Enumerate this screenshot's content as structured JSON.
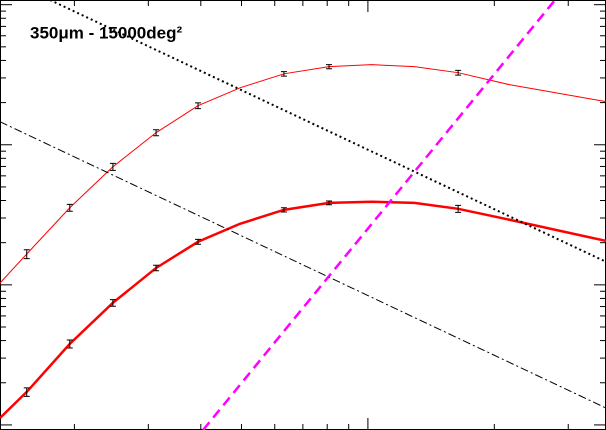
{
  "chart_data": {
    "type": "line",
    "title": "350μm - 15000deg²",
    "xscale": "log",
    "yscale": "log",
    "xlim": [
      0.133,
      3.69
    ],
    "ylim": [
      0.092,
      108
    ],
    "xticks": [
      0.2,
      0.3,
      0.4,
      0.5,
      0.6,
      0.7,
      0.8,
      0.9,
      1,
      2,
      3
    ],
    "yticks": [
      0.1,
      0.2,
      0.3,
      0.4,
      0.5,
      0.6,
      0.7,
      0.8,
      0.9,
      1,
      2,
      3,
      4,
      5,
      6,
      7,
      8,
      9,
      10,
      20,
      30,
      40,
      50,
      60,
      70,
      80,
      90,
      100
    ],
    "series": [
      {
        "color": "#ff0000",
        "style": "solid",
        "width": 1,
        "x": [
          0.133,
          0.154,
          0.195,
          0.247,
          0.313,
          0.394,
          0.496,
          0.631,
          0.808,
          1.02,
          1.29,
          1.64,
          2.18,
          3.69
        ],
        "values": [
          1.03,
          1.66,
          3.55,
          6.96,
          12.2,
          19.0,
          25.5,
          32.1,
          36.1,
          37.3,
          36.1,
          32.7,
          26.8,
          20.3
        ],
        "errors": [
          null,
          0.12,
          0.2,
          0.4,
          0.6,
          0.9,
          null,
          1.2,
          1.2,
          null,
          null,
          1.3,
          null,
          null
        ]
      },
      {
        "color": "#ff0000",
        "style": "solid",
        "width": 2.5,
        "x": [
          0.133,
          0.154,
          0.195,
          0.247,
          0.313,
          0.394,
          0.496,
          0.631,
          0.808,
          1.02,
          1.29,
          1.64,
          2.18,
          3.69
        ],
        "values": [
          0.112,
          0.172,
          0.379,
          0.744,
          1.32,
          2.03,
          2.73,
          3.43,
          3.85,
          3.92,
          3.85,
          3.49,
          2.91,
          2.06
        ],
        "errors": [
          null,
          0.012,
          0.025,
          0.04,
          0.06,
          0.08,
          null,
          0.12,
          0.12,
          null,
          null,
          0.2,
          null,
          null
        ]
      },
      {
        "color": "#000000",
        "style": "dotted",
        "width": 2,
        "x": [
          0.175,
          3.69
        ],
        "values": [
          108,
          1.46
        ]
      },
      {
        "color": "#000000",
        "style": "dashdot",
        "width": 1,
        "x": [
          0.133,
          3.69
        ],
        "values": [
          14.6,
          0.132
        ]
      },
      {
        "color": "#ff00ff",
        "style": "dashed",
        "width": 2.5,
        "x": [
          0.405,
          2.79
        ],
        "values": [
          0.092,
          108
        ]
      }
    ]
  }
}
